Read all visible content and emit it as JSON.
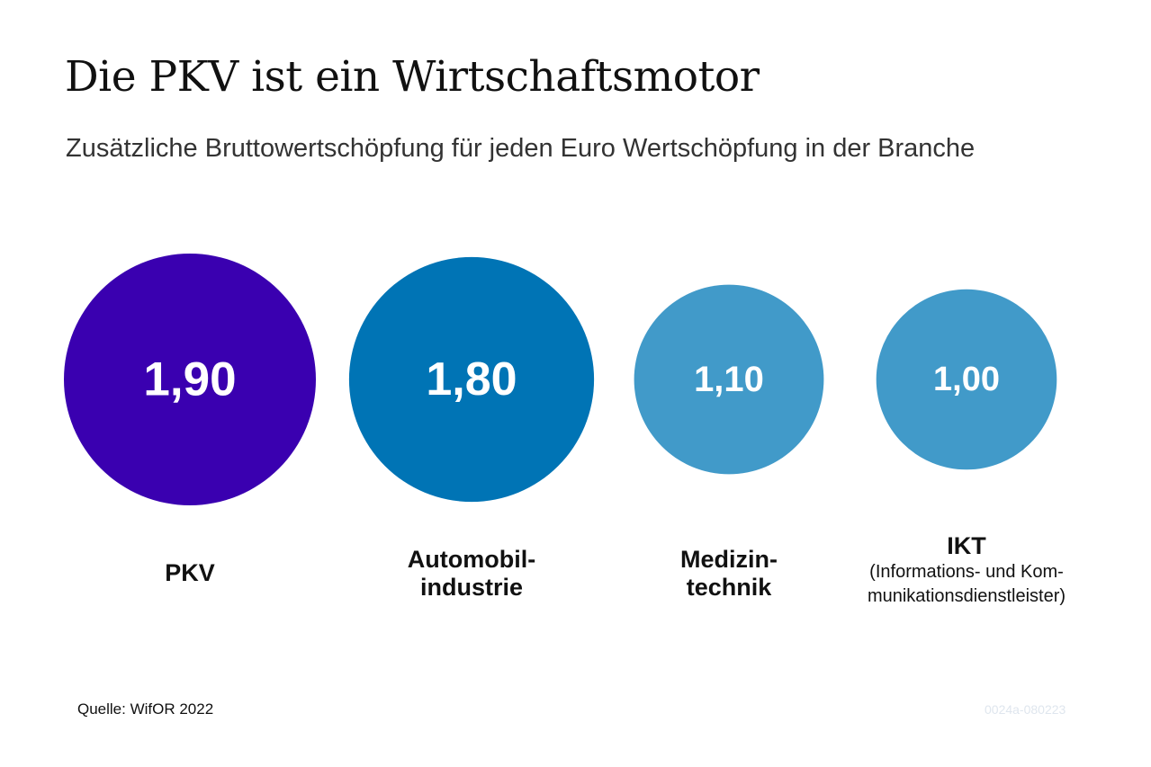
{
  "header": {
    "title": "Die PKV ist ein Wirtschaftsmotor",
    "subtitle": "Zusätzliche Bruttowertschöpfung für jeden Euro Wertschöpfung in der Branche"
  },
  "chart_data": {
    "type": "bubble",
    "categories": [
      "PKV",
      "Automobilindustrie",
      "Medizintechnik",
      "IKT"
    ],
    "values": [
      1.9,
      1.8,
      1.1,
      1.0
    ],
    "value_labels": [
      "1,90",
      "1,80",
      "1,10",
      "1,00"
    ],
    "label_lines": [
      [
        "PKV"
      ],
      [
        "Automobil-",
        "industrie"
      ],
      [
        "Medizin-",
        "technik"
      ],
      [
        "IKT"
      ]
    ],
    "sublabels": [
      [],
      [],
      [],
      [
        "(Informations- und Kom-",
        "munikationsdienstleister)"
      ]
    ],
    "colors": [
      "#3a00b0",
      "#0074b5",
      "#419ac9",
      "#419ac9"
    ],
    "title": "Die PKV ist ein Wirtschaftsmotor",
    "subtitle": "Zusätzliche Bruttowertschöpfung für jeden Euro Wertschöpfung in der Branche"
  },
  "footer": {
    "source": "Quelle: WifOR 2022",
    "code": "0024a-080223"
  }
}
